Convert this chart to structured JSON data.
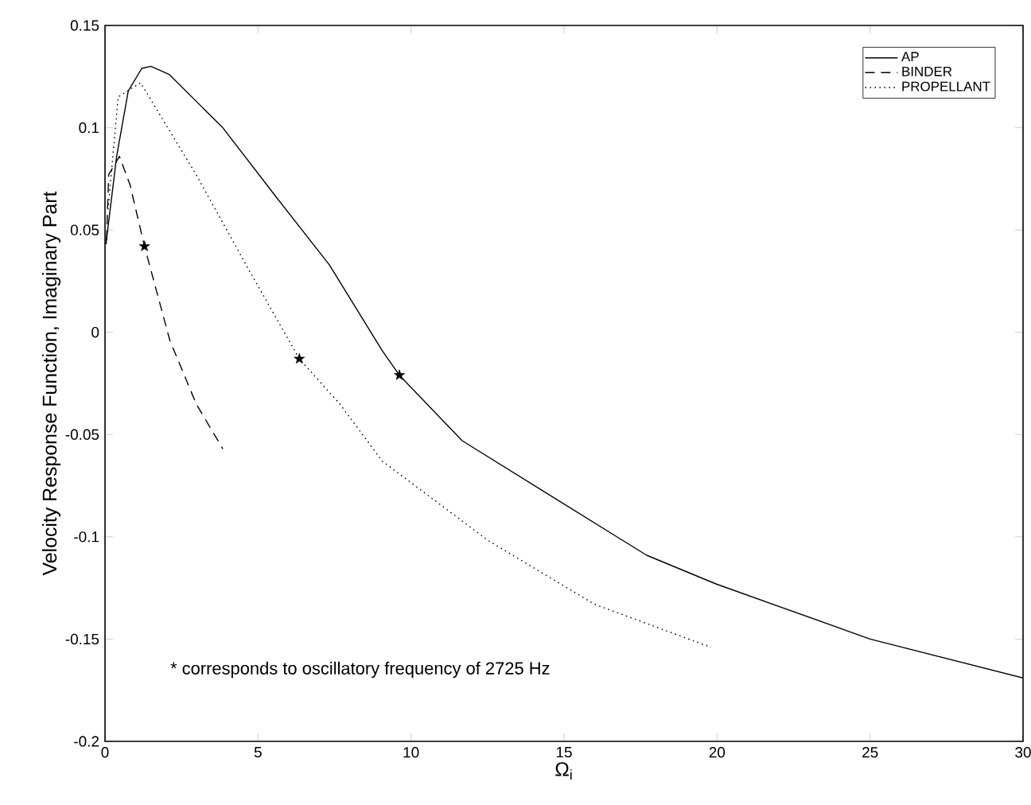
{
  "chart_data": {
    "type": "line",
    "xlabel": "Ω$_{i}$",
    "ylabel": "Velocity Response Function, Imaginary Part",
    "xlim": [
      0,
      30
    ],
    "xticks": [
      0,
      5,
      10,
      15,
      20,
      25,
      30
    ],
    "ylim": [
      -0.2,
      0.15
    ],
    "yticks": [
      -0.2,
      -0.15,
      -0.1,
      -0.05,
      0,
      0.05,
      0.1,
      0.15
    ],
    "legend": "top right",
    "grid": false,
    "annotations": [
      "* corresponds to oscillatory frequency of 2725 Hz"
    ],
    "series": [
      {
        "name": "AP",
        "color": "#000000",
        "line_style": "solid",
        "x": [
          0.03,
          0.38,
          0.76,
          1.2,
          1.5,
          2.1,
          3.85,
          5.6,
          7.33,
          9.06,
          9.62,
          11.67,
          15,
          17.7,
          19.96,
          25,
          30
        ],
        "values": [
          0.043,
          0.086,
          0.118,
          0.129,
          0.13,
          0.126,
          0.1,
          0.066,
          0.033,
          -0.009,
          -0.021,
          -0.053,
          -0.084,
          -0.109,
          -0.123,
          -0.15,
          -0.169
        ]
      },
      {
        "name": "BINDER",
        "color": "#000000",
        "line_style": "dashed",
        "x": [
          0.05,
          0.12,
          0.47,
          0.82,
          1.29,
          2.12,
          2.98,
          3.85
        ],
        "values": [
          0.045,
          0.077,
          0.086,
          0.072,
          0.042,
          -0.004,
          -0.035,
          -0.057
        ]
      },
      {
        "name": "PROPELLANT",
        "color": "#000000",
        "line_style": "dotted",
        "x": [
          0.1,
          0.43,
          1.16,
          2.98,
          4.72,
          6.35,
          7.67,
          9.06,
          12.54,
          16,
          19.8
        ],
        "values": [
          0.06,
          0.115,
          0.122,
          0.077,
          0.03,
          -0.013,
          -0.035,
          -0.063,
          -0.102,
          -0.133,
          -0.154
        ]
      },
      {
        "type": "scatter",
        "marker": "star",
        "color": "#000000",
        "x": [
          1.29,
          6.35,
          9.62
        ],
        "values": [
          0.042,
          -0.013,
          -0.021
        ]
      }
    ]
  }
}
